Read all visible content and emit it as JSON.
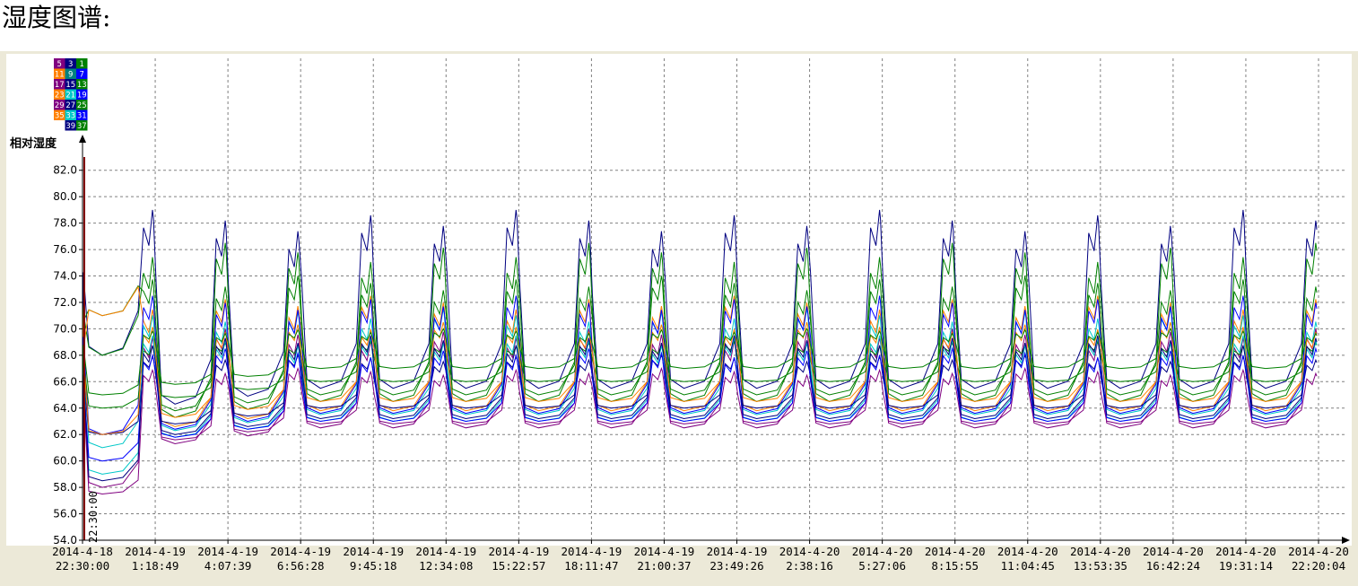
{
  "page": {
    "heading": "湿度图谱:"
  },
  "chart_data": {
    "type": "line",
    "ylabel": "相对湿度",
    "xlabel": "",
    "ylim": [
      54.0,
      83.0
    ],
    "y_ticks": [
      "54.0",
      "56.0",
      "58.0",
      "60.0",
      "62.0",
      "64.0",
      "66.0",
      "68.0",
      "70.0",
      "72.0",
      "74.0",
      "76.0",
      "78.0",
      "80.0",
      "82.0"
    ],
    "grid": true,
    "start_marker": "22:30:00",
    "legend_placement": "top-left",
    "legend": [
      "5",
      "3",
      "1",
      "11",
      "9",
      "7",
      "17",
      "15",
      "13",
      "23",
      "21",
      "19",
      "29",
      "27",
      "25",
      "35",
      "33",
      "31",
      "39",
      "37"
    ],
    "legend_colors": [
      "#800080",
      "#000080",
      "#008000",
      "#ff8000",
      "#008080",
      "#0000ff",
      "#800080",
      "#000080",
      "#008000",
      "#ff8000",
      "#00c8c8",
      "#0000ff",
      "#800080",
      "#000080",
      "#008000",
      "#ff8000",
      "#00c8c8",
      "#0000ff",
      "#000080",
      "#008000"
    ],
    "x_ticks": [
      [
        "2014-4-18",
        "22:30:00"
      ],
      [
        "2014-4-19",
        "1:18:49"
      ],
      [
        "2014-4-19",
        "4:07:39"
      ],
      [
        "2014-4-19",
        "6:56:28"
      ],
      [
        "2014-4-19",
        "9:45:18"
      ],
      [
        "2014-4-19",
        "12:34:08"
      ],
      [
        "2014-4-19",
        "15:22:57"
      ],
      [
        "2014-4-19",
        "18:11:47"
      ],
      [
        "2014-4-19",
        "21:00:37"
      ],
      [
        "2014-4-19",
        "23:49:26"
      ],
      [
        "2014-4-20",
        "2:38:16"
      ],
      [
        "2014-4-20",
        "5:27:06"
      ],
      [
        "2014-4-20",
        "8:15:55"
      ],
      [
        "2014-4-20",
        "11:04:45"
      ],
      [
        "2014-4-20",
        "13:53:35"
      ],
      [
        "2014-4-20",
        "16:42:24"
      ],
      [
        "2014-4-20",
        "19:31:14"
      ],
      [
        "2014-4-20",
        "22:20:04"
      ]
    ],
    "cycle_count": 17,
    "series": [
      {
        "color": "#000080",
        "low": 65.5,
        "high": 79.0,
        "first_low": 68.0
      },
      {
        "color": "#008000",
        "low": 64.5,
        "high": 76.5,
        "first_low": 68.0
      },
      {
        "color": "#008000",
        "low": 65.0,
        "high": 74.0,
        "first_low": 71.0
      },
      {
        "color": "#ff8000",
        "low": 63.8,
        "high": 72.5,
        "first_low": 71.0
      },
      {
        "color": "#00c8c8",
        "low": 63.5,
        "high": 71.5,
        "first_low": 61.0
      },
      {
        "color": "#0000ff",
        "low": 63.6,
        "high": 72.5,
        "first_low": 62.0
      },
      {
        "color": "#800080",
        "low": 62.5,
        "high": 70.0,
        "first_low": 58.0
      },
      {
        "color": "#000080",
        "low": 64.0,
        "high": 68.0,
        "first_low": 62.0
      },
      {
        "color": "#008000",
        "low": 66.0,
        "high": 69.0,
        "first_low": 64.0
      },
      {
        "color": "#ff8000",
        "low": 64.5,
        "high": 70.5,
        "first_low": 62.0
      },
      {
        "color": "#00c8c8",
        "low": 63.0,
        "high": 69.5,
        "first_low": 59.0
      },
      {
        "color": "#0000ff",
        "low": 63.0,
        "high": 68.5,
        "first_low": 60.0
      },
      {
        "color": "#800080",
        "low": 62.8,
        "high": 67.0,
        "first_low": 57.5
      },
      {
        "color": "#000080",
        "low": 63.2,
        "high": 69.5,
        "first_low": 58.5
      },
      {
        "color": "#008000",
        "low": 67.0,
        "high": 70.0,
        "first_low": 65.0
      }
    ]
  }
}
